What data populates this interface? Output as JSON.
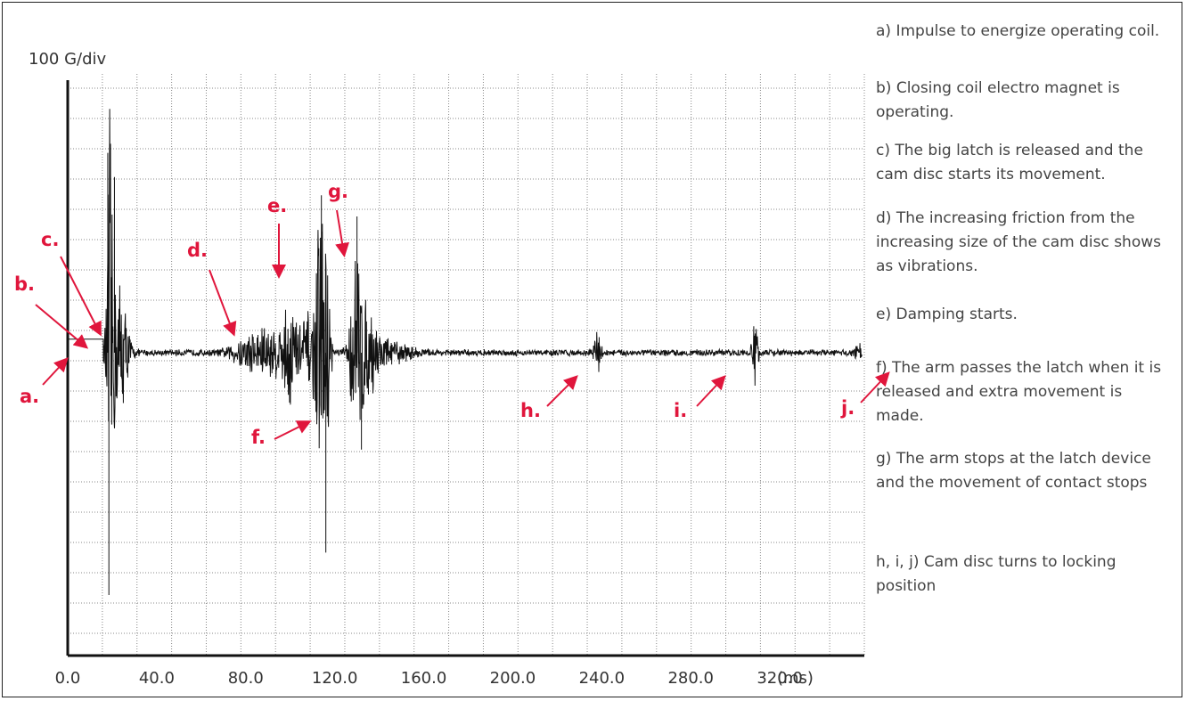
{
  "chart_data": {
    "type": "line",
    "title": "",
    "ylabel": "100 G/div",
    "xlabel": "(ms)",
    "x_ticks": [
      "0.0",
      "40.0",
      "80.0",
      "120.0",
      "160.0",
      "200.0",
      "240.0",
      "280.0",
      "320.0"
    ],
    "xlim": [
      0,
      358
    ],
    "ylim_divisions": [
      -7,
      6
    ],
    "grid": true,
    "series": [
      {
        "description_points": [
          {
            "x": 0,
            "y": 0.45
          },
          {
            "x": 16,
            "y": 0.45
          },
          {
            "x": 18,
            "y": 6.6
          },
          {
            "x": 18.5,
            "y": -8.0
          },
          {
            "x": 21,
            "y": 5.8
          },
          {
            "x": 24,
            "y": 3.0
          },
          {
            "x": 80,
            "y": 0.6
          },
          {
            "x": 98,
            "y": 2.1
          },
          {
            "x": 103,
            "y": 1.6
          },
          {
            "x": 112,
            "y": 3.8
          },
          {
            "x": 114,
            "y": 5.2
          },
          {
            "x": 116,
            "y": -6.6
          },
          {
            "x": 130,
            "y": 4.5
          },
          {
            "x": 132,
            "y": -3.2
          },
          {
            "x": 238,
            "y": 0.9
          },
          {
            "x": 308,
            "y": 1.1
          },
          {
            "x": 355,
            "y": 0.3
          }
        ],
        "color": "#111111"
      }
    ],
    "annotations": [
      {
        "label": "a.",
        "color": "#e0163c"
      },
      {
        "label": "b.",
        "color": "#e0163c"
      },
      {
        "label": "c.",
        "color": "#e0163c"
      },
      {
        "label": "d.",
        "color": "#e0163c"
      },
      {
        "label": "e.",
        "color": "#e0163c"
      },
      {
        "label": "f.",
        "color": "#e0163c"
      },
      {
        "label": "g.",
        "color": "#e0163c"
      },
      {
        "label": "h.",
        "color": "#e0163c"
      },
      {
        "label": "i.",
        "color": "#e0163c"
      },
      {
        "label": "j.",
        "color": "#e0163c"
      }
    ]
  },
  "notes": [
    "a) Impulse to energize operating coil.",
    "b) Closing coil electro magnet is operating.",
    "c) The big latch is released and the cam disc starts its movement.",
    "d) The increasing friction from the increasing size of the cam disc shows as vibrations.",
    "e) Damping starts.",
    "f) The arm passes the latch when it is released and extra movement is made.",
    "g) The arm stops at the latch device and the movement of contact stops",
    "h, i, j) Cam disc turns to locking position"
  ]
}
